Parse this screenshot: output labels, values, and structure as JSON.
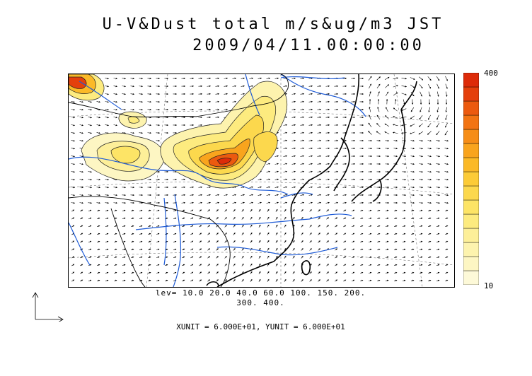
{
  "title": {
    "line1": "U-V&Dust total m/s&ug/m3 JST",
    "line2": "2009/04/11.00:00:00"
  },
  "legend": {
    "levels_line1": "lev= 10.0 20.0 40.0 60.0 100. 150. 200.",
    "levels_line2": "300. 400.",
    "units_line": "XUNIT = 6.000E+01, YUNIT = 6.000E+01"
  },
  "colorbar": {
    "max_label": "400",
    "min_label": "10",
    "colors": [
      "#fdf9d8",
      "#fdf6c3",
      "#fdf3ae",
      "#fdef99",
      "#fdeb7f",
      "#fde466",
      "#fcd84d",
      "#fccb37",
      "#fbb927",
      "#f9a41d",
      "#f68d17",
      "#f27413",
      "#ec5a0f",
      "#e4400c",
      "#dd2b09"
    ]
  },
  "map": {
    "colors": {
      "coast": "#000000",
      "river": "#1e5bd6",
      "dust_high": "#e4400c",
      "dust_low": "#fdf3ae"
    },
    "icons": [
      "wind-vector-field-icon",
      "axis-indicator-icon"
    ]
  }
}
